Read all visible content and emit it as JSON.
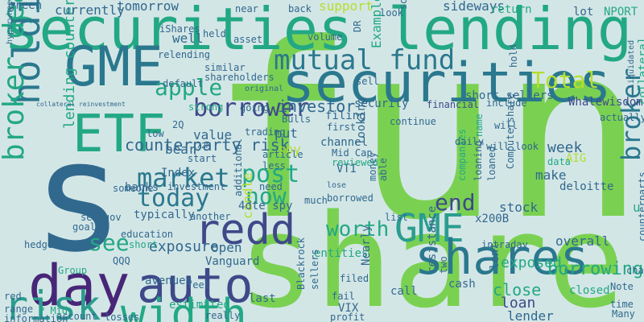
{
  "background": "#d3e6e6",
  "palette": {
    "green": "#7ad151",
    "lime": "#b5de2b",
    "teal": "#22a884",
    "sea": "#2a9d8f",
    "blue": "#2a788e",
    "navy": "#31688e",
    "indigo": "#3e4989",
    "purple": "#482677",
    "dark": "#440154"
  },
  "words": [
    {
      "text": "fund",
      "color": "green"
    },
    {
      "text": "share",
      "color": "green"
    },
    {
      "text": "s",
      "color": "navy"
    },
    {
      "text": "securities lending",
      "color": "teal"
    },
    {
      "text": "securities",
      "color": "blue"
    },
    {
      "text": "GME",
      "color": "blue"
    },
    {
      "text": "ETF",
      "color": "teal"
    },
    {
      "text": "day",
      "color": "purple"
    },
    {
      "text": "auto",
      "color": "indigo"
    },
    {
      "text": "width",
      "color": "teal"
    },
    {
      "text": "redd",
      "color": "indigo"
    },
    {
      "text": "GME",
      "color": "sea"
    },
    {
      "text": "shares",
      "color": "blue"
    },
    {
      "text": "risk",
      "color": "sea"
    },
    {
      "text": "holding",
      "color": "blue"
    },
    {
      "text": "broker dealer",
      "color": "teal"
    },
    {
      "text": "mutual fund",
      "color": "blue"
    },
    {
      "text": "borrower",
      "color": "indigo"
    },
    {
      "text": "apple",
      "color": "teal"
    },
    {
      "text": "Total",
      "color": "lime"
    },
    {
      "text": "market",
      "color": "blue"
    },
    {
      "text": "today",
      "color": "blue"
    },
    {
      "text": "post",
      "color": "teal"
    },
    {
      "text": "now",
      "color": "teal"
    },
    {
      "text": "see",
      "color": "teal"
    },
    {
      "text": "worth",
      "color": "teal"
    },
    {
      "text": "end",
      "color": "indigo"
    },
    {
      "text": "broker",
      "color": "blue"
    },
    {
      "text": "counterparty risk",
      "color": "navy"
    },
    {
      "text": "lending counterparty",
      "color": "teal"
    },
    {
      "text": "investor",
      "color": "navy"
    },
    {
      "text": "borrowing",
      "color": "teal"
    },
    {
      "text": "exposure",
      "color": "navy"
    },
    {
      "text": "close",
      "color": "teal"
    },
    {
      "text": "loan",
      "color": "indigo"
    },
    {
      "text": "week",
      "color": "navy"
    },
    {
      "text": "make",
      "color": "navy"
    },
    {
      "text": "stock",
      "color": "navy"
    },
    {
      "text": "overall",
      "color": "navy"
    },
    {
      "text": "currently",
      "color": "navy"
    },
    {
      "text": "tomorrow",
      "color": "navy"
    },
    {
      "text": "well",
      "color": "navy"
    },
    {
      "text": "green",
      "color": "navy"
    },
    {
      "text": "support",
      "color": "lime"
    },
    {
      "text": "sideways",
      "color": "navy"
    },
    {
      "text": "return",
      "color": "teal"
    },
    {
      "text": "lot",
      "color": "navy"
    },
    {
      "text": "NPORT P",
      "color": "teal"
    },
    {
      "text": "short sellers",
      "color": "navy"
    },
    {
      "text": "Whalewisdom",
      "color": "indigo"
    },
    {
      "text": "collateral",
      "color": "teal"
    },
    {
      "text": "include",
      "color": "navy"
    },
    {
      "text": "financial",
      "color": "indigo"
    },
    {
      "text": "security",
      "color": "navy"
    },
    {
      "text": "filing",
      "color": "navy"
    },
    {
      "text": "channel",
      "color": "navy"
    },
    {
      "text": "value",
      "color": "navy"
    },
    {
      "text": "put",
      "color": "navy"
    },
    {
      "text": "spy",
      "color": "lime"
    },
    {
      "text": "bear",
      "color": "navy"
    },
    {
      "text": "Index",
      "color": "navy"
    },
    {
      "text": "banks",
      "color": "navy"
    },
    {
      "text": "investment",
      "color": "navy"
    },
    {
      "text": "VTI",
      "color": "navy"
    },
    {
      "text": "typically",
      "color": "navy"
    },
    {
      "text": "sec gov",
      "color": "navy"
    },
    {
      "text": "goal",
      "color": "navy"
    },
    {
      "text": "education",
      "color": "navy"
    },
    {
      "text": "hedge",
      "color": "navy"
    },
    {
      "text": "short",
      "color": "teal"
    },
    {
      "text": "candle",
      "color": "lime"
    },
    {
      "text": "entities",
      "color": "teal"
    },
    {
      "text": "open",
      "color": "navy"
    },
    {
      "text": "Vanguard",
      "color": "navy"
    },
    {
      "text": "QQQ",
      "color": "navy"
    },
    {
      "text": "cash",
      "color": "navy"
    },
    {
      "text": "exposed",
      "color": "teal"
    },
    {
      "text": "call",
      "color": "navy"
    },
    {
      "text": "lent",
      "color": "navy"
    },
    {
      "text": "lender",
      "color": "navy"
    },
    {
      "text": "last",
      "color": "navy"
    },
    {
      "text": "VIX",
      "color": "navy"
    },
    {
      "text": "estimated",
      "color": "teal"
    },
    {
      "text": "account",
      "color": "navy"
    },
    {
      "text": "Many",
      "color": "navy"
    },
    {
      "text": "Note",
      "color": "navy"
    },
    {
      "text": "chart",
      "color": "navy"
    },
    {
      "text": "closed",
      "color": "teal"
    },
    {
      "text": "time",
      "color": "navy"
    },
    {
      "text": "Group",
      "color": "teal"
    },
    {
      "text": "avenues",
      "color": "navy"
    },
    {
      "text": "information",
      "color": "navy"
    },
    {
      "text": "losses",
      "color": "navy"
    },
    {
      "text": "really",
      "color": "navy"
    },
    {
      "text": "red",
      "color": "navy"
    },
    {
      "text": "range",
      "color": "navy"
    },
    {
      "text": "P Mid",
      "color": "teal"
    },
    {
      "text": "AIG",
      "color": "lime"
    },
    {
      "text": "x200B",
      "color": "navy"
    },
    {
      "text": "4dte spy",
      "color": "navy"
    },
    {
      "text": "deloitte",
      "color": "navy"
    },
    {
      "text": "loaned",
      "color": "navy"
    },
    {
      "text": "loaning",
      "color": "navy"
    },
    {
      "text": "actually",
      "color": "navy"
    },
    {
      "text": "data",
      "color": "teal"
    },
    {
      "text": "companies",
      "color": "teal"
    },
    {
      "text": "Computershare",
      "color": "navy"
    },
    {
      "text": "strong",
      "color": "teal"
    },
    {
      "text": "low",
      "color": "navy"
    },
    {
      "text": "2Q",
      "color": "navy"
    },
    {
      "text": "72M",
      "color": "navy"
    },
    {
      "text": "start",
      "color": "navy"
    },
    {
      "text": "trading",
      "color": "navy"
    },
    {
      "text": "article",
      "color": "navy"
    },
    {
      "text": "going",
      "color": "navy"
    },
    {
      "text": "Bulls",
      "color": "navy"
    },
    {
      "text": "less",
      "color": "navy"
    },
    {
      "text": "need",
      "color": "navy"
    },
    {
      "text": "additional",
      "color": "navy"
    },
    {
      "text": "someone",
      "color": "navy"
    },
    {
      "text": "another",
      "color": "navy"
    },
    {
      "text": "borrowed",
      "color": "navy"
    },
    {
      "text": "Blackrock",
      "color": "navy"
    },
    {
      "text": "sellers",
      "color": "navy"
    },
    {
      "text": "fail",
      "color": "navy"
    },
    {
      "text": "filed",
      "color": "navy"
    },
    {
      "text": "profit",
      "color": "navy"
    },
    {
      "text": "Nearly",
      "color": "navy"
    },
    {
      "text": "resistance",
      "color": "navy"
    },
    {
      "text": "two",
      "color": "navy"
    },
    {
      "text": "intraday",
      "color": "navy"
    },
    {
      "text": "list",
      "color": "navy"
    },
    {
      "text": "much",
      "color": "navy"
    },
    {
      "text": "feel",
      "color": "navy"
    },
    {
      "text": "lose",
      "color": "navy"
    },
    {
      "text": "reviewed",
      "color": "teal"
    },
    {
      "text": "Mid Cap",
      "color": "navy"
    },
    {
      "text": "looking",
      "color": "navy"
    },
    {
      "text": "money",
      "color": "navy"
    },
    {
      "text": "able",
      "color": "navy"
    },
    {
      "text": "continue",
      "color": "navy"
    },
    {
      "text": "first",
      "color": "navy"
    },
    {
      "text": "Example",
      "color": "teal"
    },
    {
      "text": "daily",
      "color": "navy"
    },
    {
      "text": "sell",
      "color": "navy"
    },
    {
      "text": "hold",
      "color": "navy"
    },
    {
      "text": "will",
      "color": "navy"
    },
    {
      "text": "will look",
      "color": "navy"
    },
    {
      "text": "name",
      "color": "teal"
    },
    {
      "text": "sold",
      "color": "navy"
    },
    {
      "text": "look",
      "color": "navy"
    },
    {
      "text": "DR",
      "color": "navy"
    },
    {
      "text": "volume",
      "color": "navy"
    },
    {
      "text": "near",
      "color": "navy"
    },
    {
      "text": "back",
      "color": "navy"
    },
    {
      "text": "asset",
      "color": "navy"
    },
    {
      "text": "held",
      "color": "navy"
    },
    {
      "text": "similar",
      "color": "navy"
    },
    {
      "text": "shareholders",
      "color": "navy"
    },
    {
      "text": "iShares",
      "color": "navy"
    },
    {
      "text": "relending",
      "color": "navy"
    },
    {
      "text": "default",
      "color": "navy"
    },
    {
      "text": "original",
      "color": "navy"
    },
    {
      "text": "hyperwheel",
      "color": "navy"
    },
    {
      "text": "liquidated",
      "color": "navy"
    },
    {
      "text": "counterparts",
      "color": "navy"
    },
    {
      "text": "collateral reinvestment",
      "color": "navy"
    },
    {
      "text": "u",
      "color": "teal"
    },
    {
      "text": "edgar",
      "color": "navy"
    },
    {
      "text": "html",
      "color": "navy"
    },
    {
      "text": "t",
      "color": "navy"
    }
  ]
}
